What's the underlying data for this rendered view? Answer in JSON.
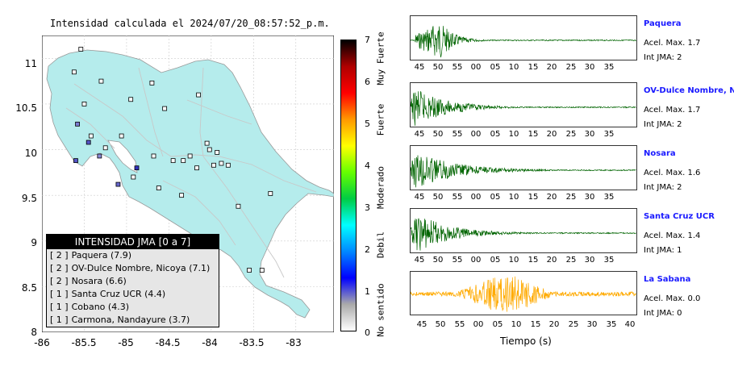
{
  "map": {
    "title": "Intensidad calculada el 2024/07/20_08:57:52_p.m.",
    "lat_ticks": [
      "11",
      "10.5",
      "10",
      "9.5",
      "9",
      "8.5",
      "8"
    ],
    "lon_ticks": [
      "-86",
      "-85.5",
      "-85",
      "-84.5",
      "-84",
      "-83.5",
      "-83"
    ],
    "land_color": "#b5ecec",
    "border_color": "#999999",
    "stations": [
      {
        "lon": -85.54,
        "lat": 11.1,
        "color": "#ffffff"
      },
      {
        "lon": -85.62,
        "lat": 10.85,
        "color": "#ffffff"
      },
      {
        "lon": -85.3,
        "lat": 10.75,
        "color": "#ffffff"
      },
      {
        "lon": -85.5,
        "lat": 10.5,
        "color": "#ffffff"
      },
      {
        "lon": -85.58,
        "lat": 10.28,
        "color": "#7b7bd0"
      },
      {
        "lon": -85.42,
        "lat": 10.15,
        "color": "#ffffff"
      },
      {
        "lon": -85.45,
        "lat": 10.08,
        "color": "#5555c8"
      },
      {
        "lon": -85.6,
        "lat": 9.88,
        "color": "#5555c8"
      },
      {
        "lon": -85.32,
        "lat": 9.93,
        "color": "#8a8ad8"
      },
      {
        "lon": -85.25,
        "lat": 10.02,
        "color": "#ffffff"
      },
      {
        "lon": -85.06,
        "lat": 10.15,
        "color": "#ffffff"
      },
      {
        "lon": -85.1,
        "lat": 9.62,
        "color": "#6666cc"
      },
      {
        "lon": -84.92,
        "lat": 9.7,
        "color": "#ffffff"
      },
      {
        "lon": -84.88,
        "lat": 9.8,
        "color": "#3333bb"
      },
      {
        "lon": -84.95,
        "lat": 10.55,
        "color": "#ffffff"
      },
      {
        "lon": -84.7,
        "lat": 10.73,
        "color": "#ffffff"
      },
      {
        "lon": -84.55,
        "lat": 10.45,
        "color": "#ffffff"
      },
      {
        "lon": -84.15,
        "lat": 10.6,
        "color": "#ffffff"
      },
      {
        "lon": -84.68,
        "lat": 9.93,
        "color": "#ffffff"
      },
      {
        "lon": -84.45,
        "lat": 9.88,
        "color": "#ffffff"
      },
      {
        "lon": -84.33,
        "lat": 9.88,
        "color": "#ffffff"
      },
      {
        "lon": -84.05,
        "lat": 10.07,
        "color": "#ffffff"
      },
      {
        "lon": -84.02,
        "lat": 10.0,
        "color": "#ffffff"
      },
      {
        "lon": -83.93,
        "lat": 9.97,
        "color": "#ffffff"
      },
      {
        "lon": -83.88,
        "lat": 9.85,
        "color": "#ffffff"
      },
      {
        "lon": -83.97,
        "lat": 9.83,
        "color": "#ffffff"
      },
      {
        "lon": -84.17,
        "lat": 9.8,
        "color": "#ffffff"
      },
      {
        "lon": -84.25,
        "lat": 9.93,
        "color": "#ffffff"
      },
      {
        "lon": -83.8,
        "lat": 9.83,
        "color": "#ffffff"
      },
      {
        "lon": -84.62,
        "lat": 9.58,
        "color": "#ffffff"
      },
      {
        "lon": -84.35,
        "lat": 9.5,
        "color": "#ffffff"
      },
      {
        "lon": -83.68,
        "lat": 9.38,
        "color": "#ffffff"
      },
      {
        "lon": -83.3,
        "lat": 9.52,
        "color": "#ffffff"
      },
      {
        "lon": -83.55,
        "lat": 8.68,
        "color": "#ffffff"
      },
      {
        "lon": -83.4,
        "lat": 8.68,
        "color": "#ffffff"
      }
    ]
  },
  "legend": {
    "title": "INTENSIDAD JMA [0 a 7]",
    "items": [
      {
        "intensity": "[ 2 ]",
        "name": "Paquera (7.9)"
      },
      {
        "intensity": "[ 2 ]",
        "name": "OV-Dulce Nombre, Nicoya (7.1)"
      },
      {
        "intensity": "[ 2 ]",
        "name": "Nosara (6.6)"
      },
      {
        "intensity": "[ 1 ]",
        "name": "Santa Cruz UCR (4.4)"
      },
      {
        "intensity": "[ 1 ]",
        "name": "Cobano (4.3)"
      },
      {
        "intensity": "[ 1 ]",
        "name": "Carmona, Nandayure (3.7)"
      }
    ]
  },
  "colorbar": {
    "ticks": [
      "7",
      "6",
      "5",
      "4",
      "3",
      "2",
      "1",
      "0"
    ],
    "labels": [
      "Muy Fuerte",
      "Fuerte",
      "Moderado",
      "Debil",
      "No sentido"
    ],
    "colors": [
      "#000000",
      "#b00000",
      "#ff0000",
      "#ff9900",
      "#ffff00",
      "#66ff00",
      "#00cc44",
      "#00ffff",
      "#0088ff",
      "#0000ff",
      "#aaaaaa",
      "#ffffff"
    ]
  },
  "waveforms": {
    "time_ticks": [
      "45",
      "50",
      "55",
      "00",
      "05",
      "10",
      "15",
      "20",
      "25",
      "30",
      "35",
      "40"
    ],
    "xlabel": "Tiempo (s)",
    "stations": [
      {
        "name": "Paquera",
        "acel": "Acel. Max. 1.7",
        "int": "Int JMA: 2",
        "color": "#006400",
        "onset": 0.02,
        "peak": 0.13,
        "decay": 0.06
      },
      {
        "name": "OV-Dulce Nombre, Nicoya",
        "acel": "Acel. Max. 1.7",
        "int": "Int JMA: 2",
        "color": "#006400",
        "onset": 0.0,
        "peak": 0.02,
        "decay": 0.14
      },
      {
        "name": "Nosara",
        "acel": "Acel. Max. 1.6",
        "int": "Int JMA: 2",
        "color": "#006400",
        "onset": 0.0,
        "peak": 0.02,
        "decay": 0.18
      },
      {
        "name": "Santa Cruz UCR",
        "acel": "Acel. Max. 1.4",
        "int": "Int JMA: 1",
        "color": "#006400",
        "onset": 0.0,
        "peak": 0.03,
        "decay": 0.15
      },
      {
        "name": "La Sabana",
        "acel": "Acel. Max. 0.0",
        "int": "Int JMA: 0",
        "color": "#ffaa00",
        "onset": 0.0,
        "peak": 0.42,
        "decay": 0.1
      }
    ]
  }
}
